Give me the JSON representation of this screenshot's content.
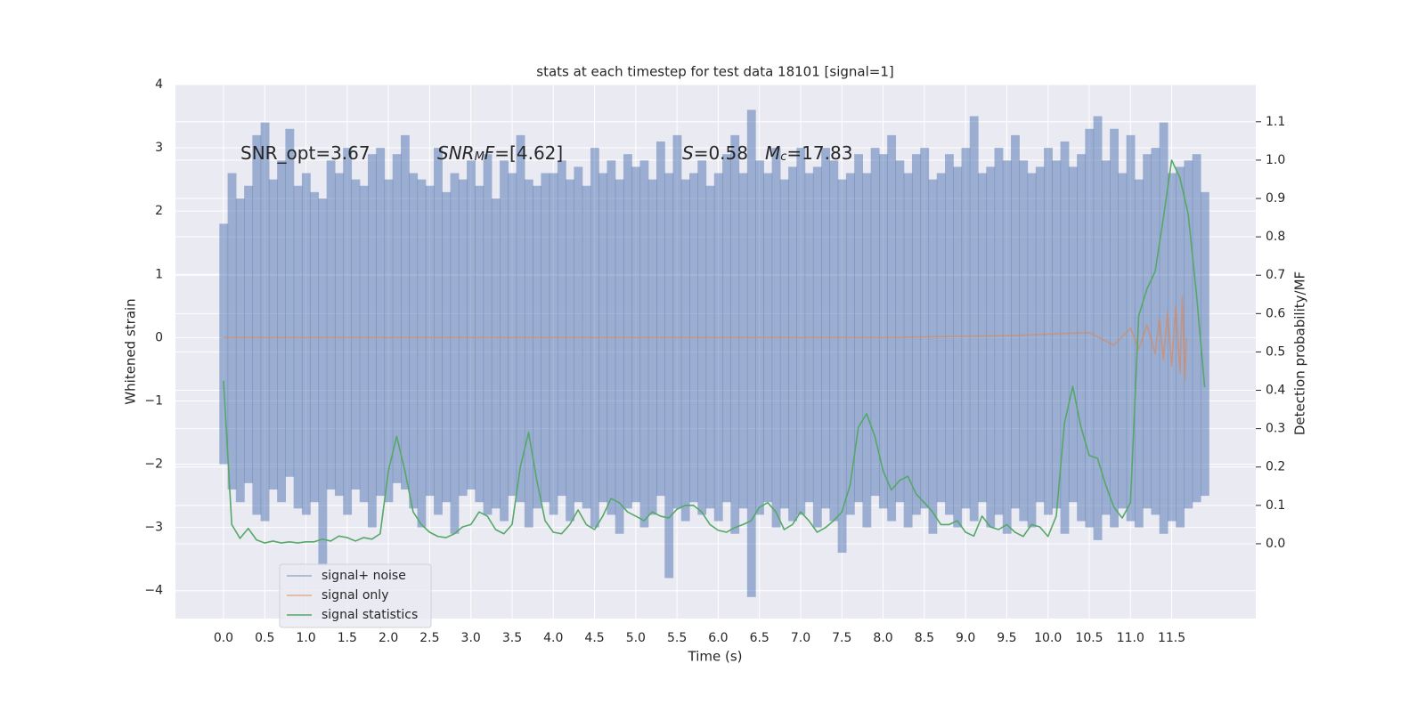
{
  "chart_data": {
    "type": "line",
    "title": "stats at each timestep for test data 18101 [signal=1]",
    "x_label": "Time (s)",
    "y_label": "Whitened strain",
    "y2_label": "Detection probability/MF",
    "xlim": [
      -0.583,
      12.52
    ],
    "ylim": [
      -4.44,
      4.0
    ],
    "y2lim": [
      -0.195,
      1.197
    ],
    "grid": true,
    "legend": "lower left",
    "xticks": [
      {
        "value": 0,
        "label": "0.0"
      },
      0.5,
      {
        "value": 1,
        "label": "1.0"
      },
      1.5,
      {
        "value": 2,
        "label": "2.0"
      },
      2.5,
      {
        "value": 3,
        "label": "3.0"
      },
      3.5,
      {
        "value": 4,
        "label": "4.0"
      },
      4.5,
      {
        "value": 5,
        "label": "5.0"
      },
      5.5,
      {
        "value": 6,
        "label": "6.0"
      },
      6.5,
      {
        "value": 7,
        "label": "7.0"
      },
      7.5,
      {
        "value": 8,
        "label": "8.0"
      },
      8.5,
      {
        "value": 9,
        "label": "9.0"
      },
      9.5,
      {
        "value": 10,
        "label": "10.0"
      },
      10.5,
      {
        "value": 11,
        "label": "11.0"
      },
      11.5
    ],
    "yticks": [
      {
        "value": -4,
        "label": "−4"
      },
      {
        "value": -3,
        "label": "−3"
      },
      {
        "value": -2,
        "label": "−2"
      },
      {
        "value": -1,
        "label": "−1"
      },
      0,
      1,
      2,
      3,
      4
    ],
    "y2ticks": [
      {
        "value": 0,
        "label": "0.0"
      },
      0.1,
      0.2,
      0.3,
      0.4,
      0.5,
      0.6,
      0.7,
      0.8,
      0.9,
      {
        "value": 1,
        "label": "1.0"
      },
      1.1
    ],
    "annotations": [
      [
        {
          "text": "SNR_opt=3.67"
        }
      ],
      [
        {
          "text": "SNR",
          "style": "italic"
        },
        {
          "text": "M",
          "style": "sub"
        },
        {
          "text": "F",
          "style": "italic"
        },
        {
          "text": "=[4.62]"
        }
      ],
      [
        {
          "text": "S",
          "style": "italic"
        },
        {
          "text": "=0.58"
        }
      ],
      [
        {
          "text": "M",
          "style": "italic"
        },
        {
          "text": "c",
          "style": "sub"
        },
        {
          "text": "=17.83"
        }
      ]
    ],
    "series": [
      {
        "name": "signal+ noise",
        "color": "#4c72b0",
        "opacity": 0.5,
        "style": "band",
        "x": [
          0.0,
          0.1,
          0.2,
          0.3,
          0.4,
          0.5,
          0.6,
          0.7,
          0.8,
          0.9,
          1.0,
          1.1,
          1.2,
          1.3,
          1.4,
          1.5,
          1.6,
          1.7,
          1.8,
          1.9,
          2.0,
          2.1,
          2.2,
          2.3,
          2.4,
          2.5,
          2.6,
          2.7,
          2.8,
          2.9,
          3.0,
          3.1,
          3.2,
          3.3,
          3.4,
          3.5,
          3.6,
          3.7,
          3.8,
          3.9,
          4.0,
          4.1,
          4.2,
          4.3,
          4.4,
          4.5,
          4.6,
          4.7,
          4.8,
          4.9,
          5.0,
          5.1,
          5.2,
          5.3,
          5.4,
          5.5,
          5.6,
          5.7,
          5.8,
          5.9,
          6.0,
          6.1,
          6.2,
          6.3,
          6.4,
          6.5,
          6.6,
          6.7,
          6.8,
          6.9,
          7.0,
          7.1,
          7.2,
          7.3,
          7.4,
          7.5,
          7.6,
          7.7,
          7.8,
          7.9,
          8.0,
          8.1,
          8.2,
          8.3,
          8.4,
          8.5,
          8.6,
          8.7,
          8.8,
          8.9,
          9.0,
          9.1,
          9.2,
          9.3,
          9.4,
          9.5,
          9.6,
          9.7,
          9.8,
          9.9,
          10.0,
          10.1,
          10.2,
          10.3,
          10.4,
          10.5,
          10.6,
          10.7,
          10.8,
          10.9,
          11.0,
          11.1,
          11.2,
          11.3,
          11.4,
          11.5,
          11.6,
          11.7,
          11.8,
          11.9
        ],
        "upper": [
          1.8,
          2.6,
          2.2,
          2.4,
          3.2,
          3.4,
          2.5,
          2.8,
          3.3,
          2.4,
          2.6,
          2.3,
          2.2,
          2.8,
          2.6,
          3.0,
          2.5,
          2.4,
          2.9,
          3.0,
          2.5,
          2.9,
          3.2,
          2.6,
          2.5,
          2.4,
          3.0,
          2.3,
          2.6,
          2.5,
          2.8,
          2.4,
          2.9,
          2.2,
          2.8,
          2.6,
          3.2,
          2.5,
          2.4,
          2.6,
          2.6,
          2.8,
          2.5,
          2.7,
          2.4,
          3.0,
          2.6,
          2.8,
          2.5,
          2.9,
          2.7,
          2.8,
          2.5,
          3.1,
          2.6,
          3.2,
          2.5,
          2.6,
          2.8,
          2.4,
          2.6,
          2.9,
          3.2,
          2.6,
          3.6,
          2.8,
          2.6,
          3.0,
          2.5,
          2.7,
          3.0,
          2.6,
          2.7,
          3.0,
          2.8,
          2.5,
          2.6,
          2.9,
          2.6,
          3.0,
          2.9,
          3.2,
          2.8,
          2.6,
          2.9,
          3.0,
          2.5,
          2.6,
          2.9,
          2.7,
          3.0,
          3.5,
          2.6,
          2.7,
          3.0,
          2.8,
          3.2,
          2.8,
          2.6,
          2.7,
          3.0,
          2.8,
          3.1,
          2.7,
          2.9,
          3.3,
          3.5,
          2.8,
          3.3,
          2.6,
          3.2,
          2.5,
          2.9,
          3.0,
          3.4,
          2.6,
          2.7,
          2.8,
          2.9,
          2.3
        ],
        "lower": [
          -2.0,
          -2.4,
          -2.6,
          -2.3,
          -2.8,
          -2.9,
          -2.4,
          -2.6,
          -2.2,
          -2.7,
          -2.8,
          -2.6,
          -3.6,
          -2.4,
          -2.5,
          -2.8,
          -2.4,
          -2.6,
          -3.0,
          -2.5,
          -2.6,
          -2.3,
          -2.4,
          -2.7,
          -3.0,
          -2.5,
          -2.8,
          -2.6,
          -3.1,
          -2.5,
          -2.4,
          -2.6,
          -2.8,
          -2.7,
          -2.9,
          -2.5,
          -2.6,
          -3.0,
          -2.7,
          -2.6,
          -2.8,
          -2.5,
          -2.9,
          -2.6,
          -2.7,
          -3.0,
          -2.6,
          -2.8,
          -3.1,
          -2.7,
          -2.6,
          -3.0,
          -2.8,
          -2.5,
          -3.8,
          -2.7,
          -2.9,
          -2.6,
          -2.8,
          -2.7,
          -2.9,
          -2.6,
          -3.1,
          -2.7,
          -4.1,
          -2.8,
          -2.6,
          -3.0,
          -2.7,
          -2.9,
          -2.8,
          -2.6,
          -3.0,
          -2.7,
          -2.9,
          -3.4,
          -2.8,
          -2.6,
          -3.0,
          -2.5,
          -2.7,
          -2.9,
          -2.6,
          -3.0,
          -2.8,
          -2.7,
          -3.1,
          -2.6,
          -2.8,
          -3.0,
          -2.7,
          -2.9,
          -2.6,
          -3.0,
          -2.8,
          -3.1,
          -2.7,
          -2.9,
          -3.0,
          -2.6,
          -2.8,
          -2.7,
          -3.1,
          -2.6,
          -2.9,
          -3.0,
          -3.2,
          -2.8,
          -3.0,
          -2.7,
          -2.9,
          -3.0,
          -2.7,
          -2.8,
          -3.1,
          -2.9,
          -3.0,
          -2.7,
          -2.6,
          -2.5
        ]
      },
      {
        "name": "signal only",
        "color": "#dd8452",
        "opacity": 0.6,
        "style": "line",
        "x": [
          0.0,
          8.0,
          9.5,
          10.5,
          10.8,
          11.0,
          11.1,
          11.2,
          11.3,
          11.35,
          11.4,
          11.45,
          11.5,
          11.55,
          11.6,
          11.63,
          11.66,
          11.68
        ],
        "values": [
          0,
          0,
          0.03,
          0.08,
          -0.12,
          0.15,
          -0.18,
          0.2,
          -0.25,
          0.3,
          -0.35,
          0.4,
          -0.45,
          0.5,
          -0.55,
          0.65,
          -0.65,
          0
        ]
      },
      {
        "name": "signal statistics",
        "color": "#55a868",
        "opacity": 1,
        "style": "line",
        "axis": "y2",
        "x": [
          0.0,
          0.1,
          0.2,
          0.3,
          0.4,
          0.5,
          0.6,
          0.7,
          0.8,
          0.9,
          1.0,
          1.1,
          1.2,
          1.3,
          1.4,
          1.5,
          1.6,
          1.7,
          1.8,
          1.9,
          2.0,
          2.1,
          2.2,
          2.3,
          2.4,
          2.5,
          2.6,
          2.7,
          2.8,
          2.9,
          3.0,
          3.1,
          3.2,
          3.3,
          3.4,
          3.5,
          3.6,
          3.7,
          3.8,
          3.9,
          4.0,
          4.1,
          4.2,
          4.3,
          4.4,
          4.5,
          4.6,
          4.7,
          4.8,
          4.9,
          5.0,
          5.1,
          5.2,
          5.3,
          5.4,
          5.5,
          5.6,
          5.7,
          5.8,
          5.9,
          6.0,
          6.1,
          6.2,
          6.3,
          6.4,
          6.5,
          6.6,
          6.7,
          6.8,
          6.9,
          7.0,
          7.1,
          7.2,
          7.3,
          7.4,
          7.5,
          7.6,
          7.7,
          7.8,
          7.9,
          8.0,
          8.1,
          8.2,
          8.3,
          8.4,
          8.5,
          8.6,
          8.7,
          8.8,
          8.9,
          9.0,
          9.1,
          9.2,
          9.3,
          9.4,
          9.5,
          9.6,
          9.7,
          9.8,
          9.9,
          10.0,
          10.1,
          10.2,
          10.3,
          10.4,
          10.5,
          10.6,
          10.7,
          10.8,
          10.9,
          11.0,
          11.1,
          11.2,
          11.3,
          11.4,
          11.5,
          11.6,
          11.7,
          11.8,
          11.9
        ],
        "values": [
          0.425,
          0.05,
          0.014,
          0.04,
          0.01,
          0.002,
          0.007,
          0.002,
          0.005,
          0.002,
          0.005,
          0.005,
          0.012,
          0.007,
          0.02,
          0.016,
          0.007,
          0.016,
          0.012,
          0.026,
          0.19,
          0.28,
          0.19,
          0.083,
          0.05,
          0.03,
          0.019,
          0.016,
          0.026,
          0.044,
          0.05,
          0.083,
          0.072,
          0.037,
          0.026,
          0.05,
          0.2,
          0.29,
          0.165,
          0.06,
          0.03,
          0.026,
          0.05,
          0.088,
          0.05,
          0.037,
          0.072,
          0.118,
          0.107,
          0.083,
          0.072,
          0.06,
          0.083,
          0.072,
          0.067,
          0.09,
          0.1,
          0.1,
          0.083,
          0.05,
          0.035,
          0.03,
          0.042,
          0.05,
          0.06,
          0.095,
          0.107,
          0.083,
          0.037,
          0.05,
          0.083,
          0.06,
          0.03,
          0.042,
          0.06,
          0.083,
          0.153,
          0.304,
          0.339,
          0.28,
          0.19,
          0.14,
          0.165,
          0.176,
          0.13,
          0.107,
          0.083,
          0.05,
          0.05,
          0.06,
          0.03,
          0.02,
          0.072,
          0.044,
          0.037,
          0.05,
          0.03,
          0.019,
          0.05,
          0.044,
          0.019,
          0.072,
          0.315,
          0.41,
          0.304,
          0.23,
          0.223,
          0.153,
          0.095,
          0.067,
          0.107,
          0.594,
          0.664,
          0.71,
          0.85,
          1.0,
          0.954,
          0.86,
          0.652,
          0.408
        ]
      }
    ]
  }
}
